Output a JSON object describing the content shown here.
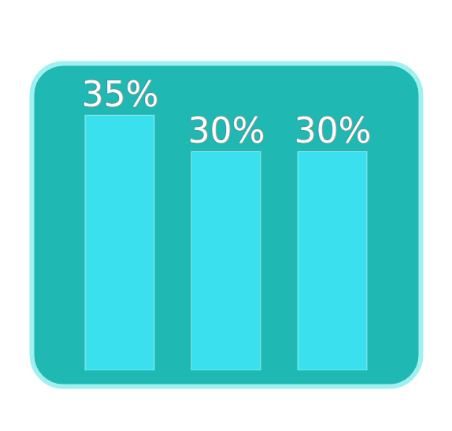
{
  "chart_data": {
    "type": "bar",
    "categories": [
      null,
      null,
      null
    ],
    "values": [
      35,
      30,
      30
    ],
    "value_labels": [
      "35%",
      "30%",
      "30%"
    ],
    "data_labels": true,
    "color": "#3fe6f8",
    "ylim": [
      0,
      40
    ],
    "tick_labels": false
  }
}
